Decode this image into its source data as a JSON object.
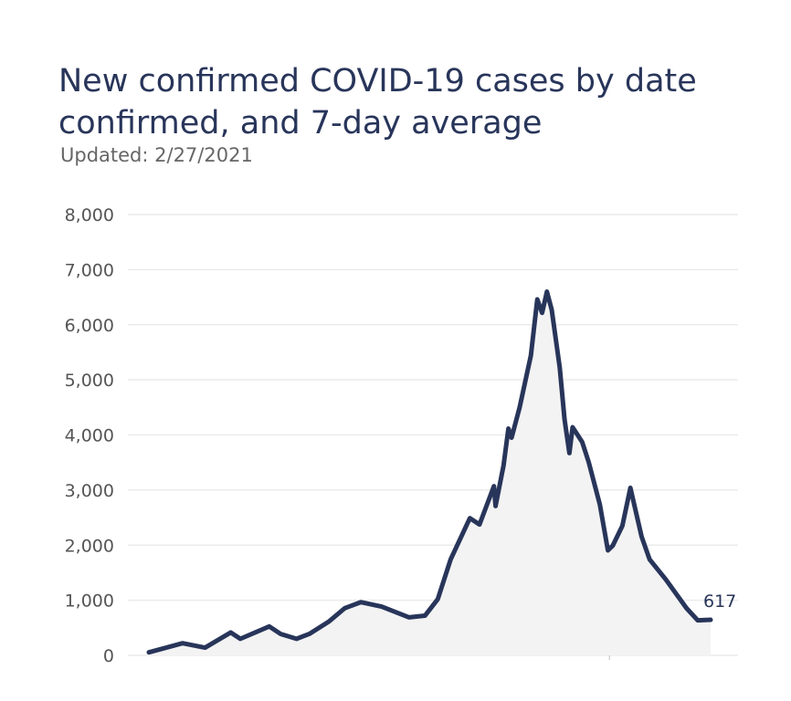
{
  "chart_data": {
    "type": "line",
    "title": "New confirmed COVID-19 cases by date confirmed, and 7-day average",
    "subtitle": "Updated: 2/27/2021",
    "xlabel": "",
    "ylabel": "",
    "ylim": [
      0,
      8000
    ],
    "xlim": [
      0,
      350
    ],
    "grid": true,
    "y_ticks": [
      0,
      1000,
      2000,
      3000,
      4000,
      5000,
      6000,
      7000,
      8000
    ],
    "y_tick_labels": [
      "0",
      "1,000",
      "2,000",
      "3,000",
      "4,000",
      "5,000",
      "6,000",
      "7,000",
      "8,000"
    ],
    "x_ticks": [
      287
    ],
    "series": [
      {
        "name": "7-day average",
        "color": "#28355a",
        "x": [
          0,
          21,
          35,
          51,
          57,
          75,
          82,
          92,
          100,
          112,
          122,
          132,
          145,
          162,
          172,
          180,
          188,
          200,
          206,
          215,
          216,
          221,
          224,
          226,
          231,
          238,
          242,
          245,
          248,
          251,
          256,
          259,
          262,
          264,
          270,
          274,
          281,
          286,
          289,
          295,
          300,
          307,
          312,
          322,
          335,
          342,
          350
        ],
        "y": [
          55,
          220,
          140,
          415,
          300,
          525,
          390,
          300,
          390,
          610,
          855,
          965,
          885,
          690,
          720,
          1020,
          1740,
          2490,
          2375,
          3070,
          2710,
          3450,
          4115,
          3950,
          4500,
          5440,
          6460,
          6215,
          6600,
          6270,
          5220,
          4280,
          3670,
          4140,
          3870,
          3510,
          2735,
          1905,
          1990,
          2350,
          3040,
          2155,
          1740,
          1380,
          855,
          635,
          645
        ]
      }
    ],
    "annotations": [
      {
        "text": "617",
        "series": "7-day average",
        "at": "last-point"
      }
    ],
    "legend": "none"
  }
}
